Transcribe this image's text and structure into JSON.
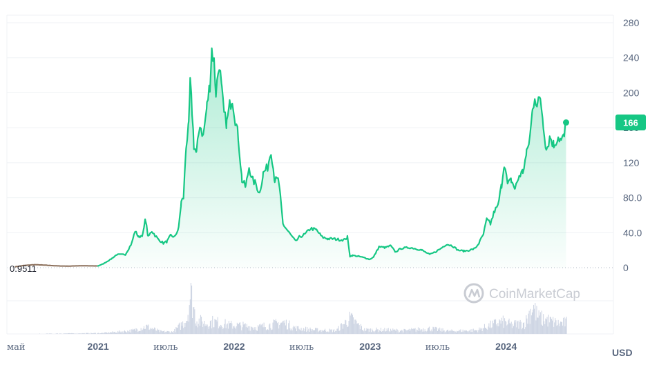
{
  "chart_data": {
    "type": "area",
    "currency_label": "USD",
    "watermark": "CoinMarketCap",
    "start_value_label": "0.9511",
    "current_price_label": "166",
    "current_price": 166,
    "ylim": [
      0,
      280
    ],
    "y_ticks": [
      {
        "value": 0,
        "label": "0"
      },
      {
        "value": 40,
        "label": "40.0"
      },
      {
        "value": 80,
        "label": "80.0"
      },
      {
        "value": 120,
        "label": "120"
      },
      {
        "value": 160,
        "label": "160"
      },
      {
        "value": 200,
        "label": "200"
      },
      {
        "value": 240,
        "label": "240"
      },
      {
        "value": 280,
        "label": "280"
      }
    ],
    "x_range": [
      "2020-05-01",
      "2024-10-15"
    ],
    "x_ticks": [
      {
        "date": "2020-05-01",
        "label": "май",
        "kind": "month"
      },
      {
        "date": "2021-01-01",
        "label": "2021",
        "kind": "year"
      },
      {
        "date": "2021-07-01",
        "label": "июль",
        "kind": "month"
      },
      {
        "date": "2022-01-01",
        "label": "2022",
        "kind": "year"
      },
      {
        "date": "2022-07-01",
        "label": "июль",
        "kind": "month"
      },
      {
        "date": "2023-01-01",
        "label": "2023",
        "kind": "year"
      },
      {
        "date": "2023-07-01",
        "label": "июль",
        "kind": "month"
      },
      {
        "date": "2024-01-01",
        "label": "2024",
        "kind": "year"
      }
    ],
    "colors": {
      "line": "#16c784",
      "area_top": "#16c784",
      "pre_segment": "#8b6f5a",
      "grid": "#eff2f5",
      "volume": "#cfd6e4",
      "badge": "#16c784"
    },
    "series": [
      {
        "points": [
          [
            "2020-05-22",
            0.95
          ],
          [
            "2020-06-15",
            2.5
          ],
          [
            "2020-07-15",
            3.5
          ],
          [
            "2020-08-15",
            2.8
          ],
          [
            "2020-09-15",
            2.0
          ],
          [
            "2020-10-15",
            1.8
          ],
          [
            "2020-11-15",
            2.2
          ],
          [
            "2020-12-15",
            2.0
          ],
          [
            "2021-01-01",
            2.0
          ],
          [
            "2021-01-15",
            4.5
          ],
          [
            "2021-02-05",
            10
          ],
          [
            "2021-02-20",
            15
          ],
          [
            "2021-03-15",
            15
          ],
          [
            "2021-04-01",
            28
          ],
          [
            "2021-04-10",
            42
          ],
          [
            "2021-04-20",
            35
          ],
          [
            "2021-05-01",
            38
          ],
          [
            "2021-05-08",
            56
          ],
          [
            "2021-05-15",
            35
          ],
          [
            "2021-05-25",
            42
          ],
          [
            "2021-06-10",
            33
          ],
          [
            "2021-06-25",
            28
          ],
          [
            "2021-07-05",
            30
          ],
          [
            "2021-07-15",
            37
          ],
          [
            "2021-07-25",
            35
          ],
          [
            "2021-08-05",
            45
          ],
          [
            "2021-08-12",
            75
          ],
          [
            "2021-08-18",
            80
          ],
          [
            "2021-08-25",
            140
          ],
          [
            "2021-09-01",
            160
          ],
          [
            "2021-09-05",
            210
          ],
          [
            "2021-09-10",
            180
          ],
          [
            "2021-09-15",
            140
          ],
          [
            "2021-09-22",
            130
          ],
          [
            "2021-10-01",
            165
          ],
          [
            "2021-10-10",
            150
          ],
          [
            "2021-10-20",
            185
          ],
          [
            "2021-10-28",
            210
          ],
          [
            "2021-11-02",
            250
          ],
          [
            "2021-11-08",
            235
          ],
          [
            "2021-11-13",
            200
          ],
          [
            "2021-11-22",
            235
          ],
          [
            "2021-11-29",
            200
          ],
          [
            "2021-12-05",
            175
          ],
          [
            "2021-12-12",
            165
          ],
          [
            "2021-12-20",
            185
          ],
          [
            "2021-12-27",
            195
          ],
          [
            "2022-01-04",
            170
          ],
          [
            "2022-01-12",
            150
          ],
          [
            "2022-01-22",
            100
          ],
          [
            "2022-02-01",
            92
          ],
          [
            "2022-02-10",
            115
          ],
          [
            "2022-02-20",
            100
          ],
          [
            "2022-03-01",
            95
          ],
          [
            "2022-03-10",
            85
          ],
          [
            "2022-03-20",
            108
          ],
          [
            "2022-04-01",
            115
          ],
          [
            "2022-04-10",
            135
          ],
          [
            "2022-04-20",
            100
          ],
          [
            "2022-04-30",
            100
          ],
          [
            "2022-05-05",
            80
          ],
          [
            "2022-05-12",
            50
          ],
          [
            "2022-05-20",
            45
          ],
          [
            "2022-06-01",
            38
          ],
          [
            "2022-06-15",
            30
          ],
          [
            "2022-06-25",
            35
          ],
          [
            "2022-07-10",
            38
          ],
          [
            "2022-07-25",
            45
          ],
          [
            "2022-08-10",
            43
          ],
          [
            "2022-08-25",
            35
          ],
          [
            "2022-09-10",
            33
          ],
          [
            "2022-09-25",
            33
          ],
          [
            "2022-10-10",
            32
          ],
          [
            "2022-10-25",
            32
          ],
          [
            "2022-11-01",
            35
          ],
          [
            "2022-11-08",
            13
          ],
          [
            "2022-11-15",
            14
          ],
          [
            "2022-12-01",
            13
          ],
          [
            "2022-12-20",
            11
          ],
          [
            "2022-12-30",
            9.5
          ],
          [
            "2023-01-10",
            12
          ],
          [
            "2023-01-25",
            24
          ],
          [
            "2023-02-10",
            23
          ],
          [
            "2023-02-25",
            25
          ],
          [
            "2023-03-10",
            18
          ],
          [
            "2023-03-25",
            22
          ],
          [
            "2023-04-15",
            23
          ],
          [
            "2023-05-01",
            22
          ],
          [
            "2023-05-20",
            20
          ],
          [
            "2023-06-10",
            15
          ],
          [
            "2023-06-25",
            18
          ],
          [
            "2023-07-10",
            22
          ],
          [
            "2023-07-25",
            27
          ],
          [
            "2023-08-10",
            25
          ],
          [
            "2023-08-25",
            20
          ],
          [
            "2023-09-10",
            19
          ],
          [
            "2023-09-25",
            20
          ],
          [
            "2023-10-10",
            22
          ],
          [
            "2023-10-20",
            28
          ],
          [
            "2023-11-01",
            38
          ],
          [
            "2023-11-10",
            55
          ],
          [
            "2023-11-20",
            50
          ],
          [
            "2023-12-01",
            65
          ],
          [
            "2023-12-10",
            70
          ],
          [
            "2023-12-20",
            95
          ],
          [
            "2023-12-27",
            120
          ],
          [
            "2024-01-05",
            95
          ],
          [
            "2024-01-15",
            100
          ],
          [
            "2024-01-25",
            90
          ],
          [
            "2024-02-05",
            105
          ],
          [
            "2024-02-15",
            110
          ],
          [
            "2024-02-25",
            130
          ],
          [
            "2024-03-05",
            150
          ],
          [
            "2024-03-12",
            180
          ],
          [
            "2024-03-18",
            198
          ],
          [
            "2024-03-25",
            185
          ],
          [
            "2024-04-02",
            195
          ],
          [
            "2024-04-10",
            165
          ],
          [
            "2024-04-18",
            135
          ],
          [
            "2024-04-28",
            150
          ],
          [
            "2024-05-08",
            140
          ],
          [
            "2024-05-20",
            150
          ],
          [
            "2024-05-28",
            145
          ],
          [
            "2024-06-05",
            150
          ],
          [
            "2024-06-10",
            166
          ]
        ]
      }
    ],
    "volume_profile": [
      [
        "2020-05-22",
        0.0
      ],
      [
        "2021-01-10",
        0.02
      ],
      [
        "2021-04-01",
        0.08
      ],
      [
        "2021-05-10",
        0.18
      ],
      [
        "2021-06-15",
        0.06
      ],
      [
        "2021-07-20",
        0.05
      ],
      [
        "2021-08-15",
        0.25
      ],
      [
        "2021-08-27",
        0.4
      ],
      [
        "2021-09-05",
        1.0
      ],
      [
        "2021-09-20",
        0.35
      ],
      [
        "2021-10-15",
        0.25
      ],
      [
        "2021-11-05",
        0.3
      ],
      [
        "2021-12-15",
        0.22
      ],
      [
        "2022-01-20",
        0.2
      ],
      [
        "2022-03-01",
        0.16
      ],
      [
        "2022-04-10",
        0.22
      ],
      [
        "2022-05-12",
        0.28
      ],
      [
        "2022-06-15",
        0.14
      ],
      [
        "2022-08-01",
        0.1
      ],
      [
        "2022-10-01",
        0.08
      ],
      [
        "2022-11-08",
        0.38
      ],
      [
        "2022-12-15",
        0.1
      ],
      [
        "2023-02-01",
        0.1
      ],
      [
        "2023-04-01",
        0.08
      ],
      [
        "2023-06-10",
        0.13
      ],
      [
        "2023-08-01",
        0.07
      ],
      [
        "2023-10-15",
        0.09
      ],
      [
        "2023-11-15",
        0.2
      ],
      [
        "2023-12-20",
        0.3
      ],
      [
        "2024-01-15",
        0.22
      ],
      [
        "2024-02-20",
        0.26
      ],
      [
        "2024-03-12",
        0.7
      ],
      [
        "2024-03-25",
        0.4
      ],
      [
        "2024-04-15",
        0.35
      ],
      [
        "2024-05-20",
        0.25
      ],
      [
        "2024-06-10",
        0.28
      ]
    ]
  }
}
